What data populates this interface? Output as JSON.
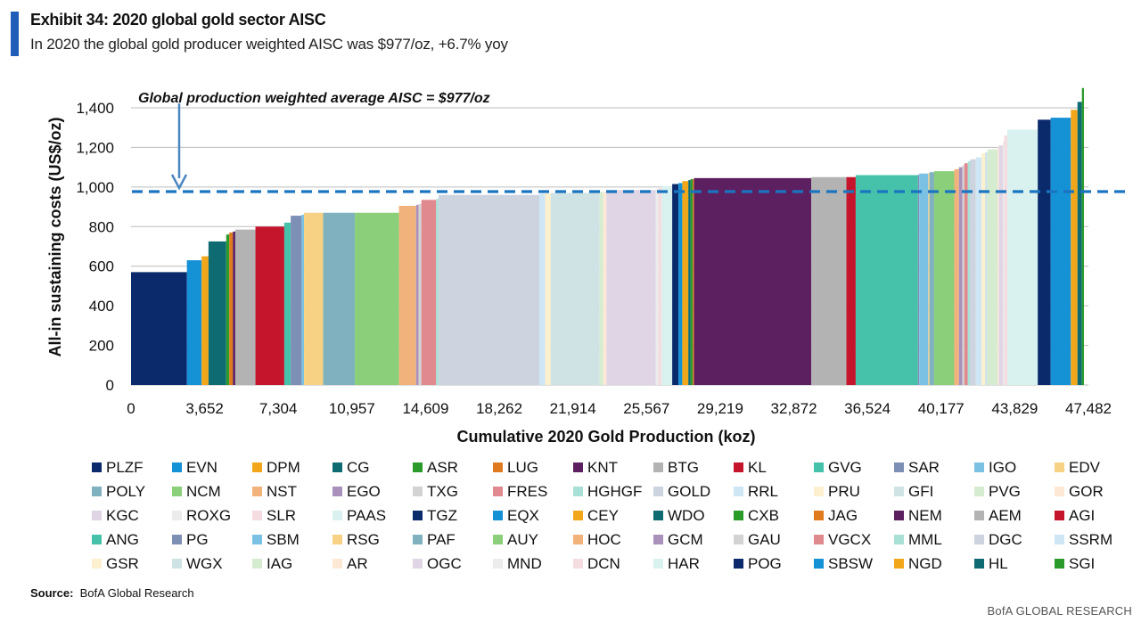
{
  "header": {
    "title": "Exhibit 34: 2020 global gold sector AISC",
    "subtitle": "In 2020 the global gold producer weighted AISC was $977/oz, +6.7% yoy"
  },
  "footer": {
    "source_label": "Source:",
    "source_text": "BofA Global Research",
    "brand": "BofA GLOBAL RESEARCH"
  },
  "chart_data": {
    "type": "bar",
    "subtype": "cost-curve (variable-width bars)",
    "title": "Exhibit 34: 2020 global gold sector AISC",
    "xlabel": "Cumulative 2020 Gold Production (koz)",
    "ylabel": "All-in sustaining costs (US$/oz)",
    "xlim": [
      0,
      47482
    ],
    "ylim": [
      0,
      1400
    ],
    "xticks": [
      "0",
      "3,652",
      "7,304",
      "10,957",
      "14,609",
      "18,262",
      "21,914",
      "25,567",
      "29,219",
      "32,872",
      "36,524",
      "40,177",
      "43,829",
      "47,482"
    ],
    "yticks": [
      "0",
      "200",
      "400",
      "600",
      "800",
      "1,000",
      "1,200",
      "1,400"
    ],
    "grid": "horizontal",
    "legend_position": "bottom",
    "reference_line": {
      "value": 977,
      "label": "Global production weighted average AISC = $977/oz"
    },
    "annotation": "Global production weighted average  AISC = $977/oz",
    "series": [
      {
        "name": "PLZF",
        "production": 2770,
        "aisc": 570,
        "color": "#0a2a6b"
      },
      {
        "name": "EVN",
        "production": 730,
        "aisc": 630,
        "color": "#1591d6"
      },
      {
        "name": "DPM",
        "production": 340,
        "aisc": 650,
        "color": "#f2a71b"
      },
      {
        "name": "CG",
        "production": 880,
        "aisc": 725,
        "color": "#0f6b72"
      },
      {
        "name": "ASR",
        "production": 150,
        "aisc": 760,
        "color": "#2a9a2a"
      },
      {
        "name": "LUG",
        "production": 180,
        "aisc": 770,
        "color": "#e07a1f"
      },
      {
        "name": "KNT",
        "production": 120,
        "aisc": 775,
        "color": "#5c2060"
      },
      {
        "name": "BTG",
        "production": 1000,
        "aisc": 785,
        "color": "#b3b3b3"
      },
      {
        "name": "KL",
        "production": 1430,
        "aisc": 800,
        "color": "#c4152c"
      },
      {
        "name": "GVG",
        "production": 320,
        "aisc": 820,
        "color": "#45c2a9"
      },
      {
        "name": "SAR",
        "production": 540,
        "aisc": 855,
        "color": "#7e8fb5"
      },
      {
        "name": "IGO",
        "production": 120,
        "aisc": 860,
        "color": "#7ac1e3"
      },
      {
        "name": "EDV",
        "production": 950,
        "aisc": 870,
        "color": "#f7d184"
      },
      {
        "name": "POLY",
        "production": 1570,
        "aisc": 870,
        "color": "#7fb1bf"
      },
      {
        "name": "NCM",
        "production": 2190,
        "aisc": 870,
        "color": "#8ccf7a"
      },
      {
        "name": "NST",
        "production": 850,
        "aisc": 905,
        "color": "#f2b27c"
      },
      {
        "name": "EGO",
        "production": 120,
        "aisc": 910,
        "color": "#a991bc"
      },
      {
        "name": "TXG",
        "production": 140,
        "aisc": 915,
        "color": "#d3d3d3"
      },
      {
        "name": "FRES",
        "production": 730,
        "aisc": 935,
        "color": "#e0898f"
      },
      {
        "name": "HGHGF",
        "production": 120,
        "aisc": 940,
        "color": "#a9e0d5"
      },
      {
        "name": "GOLD",
        "production": 5000,
        "aisc": 960,
        "color": "#cdd3df"
      },
      {
        "name": "RRL",
        "production": 290,
        "aisc": 965,
        "color": "#cfe6f5"
      },
      {
        "name": "PRU",
        "production": 270,
        "aisc": 968,
        "color": "#fdf0cf"
      },
      {
        "name": "GFI",
        "production": 2430,
        "aisc": 970,
        "color": "#cfe3e5"
      },
      {
        "name": "PVG",
        "production": 180,
        "aisc": 975,
        "color": "#d6ecd0"
      },
      {
        "name": "GOR",
        "production": 160,
        "aisc": 975,
        "color": "#fde8d6"
      },
      {
        "name": "KGC",
        "production": 2440,
        "aisc": 985,
        "color": "#e0d5e5"
      },
      {
        "name": "ROXG",
        "production": 130,
        "aisc": 990,
        "color": "#ececec"
      },
      {
        "name": "SLR",
        "production": 170,
        "aisc": 995,
        "color": "#f5dce0"
      },
      {
        "name": "PAAS",
        "production": 520,
        "aisc": 1005,
        "color": "#d9f2ef"
      },
      {
        "name": "TGZ",
        "production": 310,
        "aisc": 1015,
        "color": "#0a2a6b"
      },
      {
        "name": "EQX",
        "production": 190,
        "aisc": 1020,
        "color": "#1591d6"
      },
      {
        "name": "CEY",
        "production": 300,
        "aisc": 1030,
        "color": "#f2a71b"
      },
      {
        "name": "WDO",
        "production": 110,
        "aisc": 1035,
        "color": "#0f6b72"
      },
      {
        "name": "CXB",
        "production": 110,
        "aisc": 1040,
        "color": "#2a9a2a"
      },
      {
        "name": "JAG",
        "production": 60,
        "aisc": 1040,
        "color": "#e07a1f"
      },
      {
        "name": "NEM",
        "production": 5820,
        "aisc": 1045,
        "color": "#5c2060"
      },
      {
        "name": "AEM",
        "production": 1740,
        "aisc": 1050,
        "color": "#b3b3b3"
      },
      {
        "name": "AGI",
        "production": 460,
        "aisc": 1050,
        "color": "#c4152c"
      },
      {
        "name": "ANG",
        "production": 3090,
        "aisc": 1060,
        "color": "#45c2a9"
      },
      {
        "name": "PG",
        "production": 60,
        "aisc": 1062,
        "color": "#7e8fb5"
      },
      {
        "name": "SBM",
        "production": 450,
        "aisc": 1068,
        "color": "#7ac1e3"
      },
      {
        "name": "RSG",
        "production": 60,
        "aisc": 1070,
        "color": "#f7d184"
      },
      {
        "name": "PAF",
        "production": 230,
        "aisc": 1075,
        "color": "#7fb1bf"
      },
      {
        "name": "AUY",
        "production": 1000,
        "aisc": 1080,
        "color": "#8ccf7a"
      },
      {
        "name": "HOC",
        "production": 230,
        "aisc": 1090,
        "color": "#f2b27c"
      },
      {
        "name": "GCM",
        "production": 170,
        "aisc": 1100,
        "color": "#a991bc"
      },
      {
        "name": "GAU",
        "production": 100,
        "aisc": 1110,
        "color": "#d3d3d3"
      },
      {
        "name": "VGCX",
        "production": 170,
        "aisc": 1120,
        "color": "#e0898f"
      },
      {
        "name": "MML",
        "production": 120,
        "aisc": 1130,
        "color": "#a9e0d5"
      },
      {
        "name": "DGC",
        "production": 280,
        "aisc": 1140,
        "color": "#cdd3df"
      },
      {
        "name": "SSRM",
        "production": 280,
        "aisc": 1150,
        "color": "#cfe6f5"
      },
      {
        "name": "GSR",
        "production": 180,
        "aisc": 1170,
        "color": "#fdf0cf"
      },
      {
        "name": "WGX",
        "production": 120,
        "aisc": 1175,
        "color": "#cfe3e5"
      },
      {
        "name": "IAG",
        "production": 500,
        "aisc": 1190,
        "color": "#d6ecd0"
      },
      {
        "name": "AR",
        "production": 60,
        "aisc": 1200,
        "color": "#fde8d6"
      },
      {
        "name": "OGC",
        "production": 200,
        "aisc": 1210,
        "color": "#e0d5e5"
      },
      {
        "name": "MND",
        "production": 60,
        "aisc": 1230,
        "color": "#ececec"
      },
      {
        "name": "DCN",
        "production": 160,
        "aisc": 1260,
        "color": "#f5dce0"
      },
      {
        "name": "HAR",
        "production": 1510,
        "aisc": 1290,
        "color": "#d9f2ef"
      },
      {
        "name": "POG",
        "production": 640,
        "aisc": 1340,
        "color": "#0a2a6b"
      },
      {
        "name": "SBSW",
        "production": 1000,
        "aisc": 1350,
        "color": "#1591d6"
      },
      {
        "name": "NGD",
        "production": 330,
        "aisc": 1390,
        "color": "#f2a71b"
      },
      {
        "name": "HL",
        "production": 220,
        "aisc": 1430,
        "color": "#0f6b72"
      },
      {
        "name": "SGI",
        "production": 100,
        "aisc": 1500,
        "color": "#2a9a2a"
      }
    ]
  }
}
